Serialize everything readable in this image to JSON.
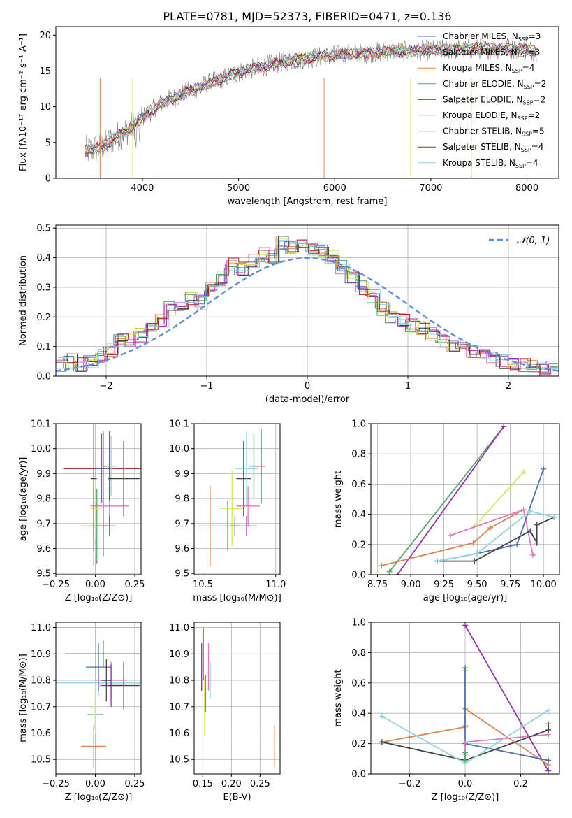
{
  "figure": {
    "title": "PLATE=0781, MJD=52373, FIBERID=0471, z=0.136"
  },
  "chart_data": [
    {
      "id": "spectrum",
      "type": "line",
      "xlabel": "wavelength [Angstrom, rest frame]",
      "ylabel": "Flux [fλ10⁻¹⁷ erg cm⁻² s⁻¹ A⁻¹]",
      "xlim": [
        3100,
        8330
      ],
      "ylim": [
        0,
        21.2
      ],
      "xticks": [
        4000,
        5000,
        6000,
        7000,
        8000
      ],
      "yticks": [
        0,
        5,
        10,
        15,
        20
      ],
      "legend_position": "top-right",
      "continuum": {
        "x": [
          3400,
          3550,
          3700,
          3850,
          4000,
          4200,
          4500,
          4800,
          5000,
          5300,
          5600,
          6000,
          6400,
          6800,
          7200,
          7600,
          8000,
          8100
        ],
        "y": [
          3.8,
          4.2,
          5.5,
          6.8,
          8.5,
          10.5,
          12.2,
          13.8,
          14.8,
          15.8,
          16.6,
          17.2,
          17.6,
          17.8,
          18.0,
          18.1,
          18.0,
          17.8
        ]
      },
      "series": [
        {
          "name": "Chabrier MILES, N_SSP=3",
          "label": "Chabrier MILES, N",
          "sub": "SSP",
          "tail": "=3",
          "color": "#4c72b0"
        },
        {
          "name": "Salpeter MILES, N_SSP=3",
          "label": "Salpeter MILES, N",
          "sub": "SSP",
          "tail": "=3",
          "color": "#e377c2"
        },
        {
          "name": "Kroupa MILES, N_SSP=4",
          "label": "Kroupa MILES, N",
          "sub": "SSP",
          "tail": "=4",
          "color": "#dd8452"
        },
        {
          "name": "Chabrier ELODIE, N_SSP=2",
          "label": "Chabrier ELODIE, N",
          "sub": "SSP",
          "tail": "=2",
          "color": "#55a868"
        },
        {
          "name": "Salpeter ELODIE, N_SSP=2",
          "label": "Salpeter ELODIE, N",
          "sub": "SSP",
          "tail": "=2",
          "color": "#9b30b0"
        },
        {
          "name": "Kroupa ELODIE, N_SSP=2",
          "label": "Kroupa ELODIE, N",
          "sub": "SSP",
          "tail": "=2",
          "color": "#d4e95e"
        },
        {
          "name": "Chabrier STELIB, N_SSP=5",
          "label": "Chabrier STELIB, N",
          "sub": "SSP",
          "tail": "=5",
          "color": "#444444"
        },
        {
          "name": "Salpeter STELIB, N_SSP=4",
          "label": "Salpeter STELIB, N",
          "sub": "SSP",
          "tail": "=4",
          "color": "#b22222"
        },
        {
          "name": "Kroupa STELIB, N_SSP=4",
          "label": "Kroupa STELIB, N",
          "sub": "SSP",
          "tail": "=4",
          "color": "#8fd3e0"
        }
      ]
    },
    {
      "id": "residual-hist",
      "type": "line",
      "xlabel": "(data-model)/error",
      "ylabel": "Normed distribution",
      "xlim": [
        -2.5,
        2.5
      ],
      "ylim": [
        0,
        0.51
      ],
      "xticks": [
        -2,
        -1,
        0,
        1,
        2
      ],
      "yticks": [
        0.0,
        0.1,
        0.2,
        0.3,
        0.4,
        0.5
      ],
      "legend_entry": "𝒩(0, 1)",
      "legend_position": "top-right",
      "bins_left": [
        -2.5,
        -2.4,
        -2.3,
        -2.2,
        -2.1,
        -2.0,
        -1.9,
        -1.8,
        -1.7,
        -1.6,
        -1.5,
        -1.4,
        -1.3,
        -1.2,
        -1.1,
        -1.0,
        -0.9,
        -0.8,
        -0.7,
        -0.6,
        -0.5,
        -0.4,
        -0.3,
        -0.2,
        -0.1,
        0.0,
        0.1,
        0.2,
        0.3,
        0.4,
        0.5,
        0.6,
        0.7,
        0.8,
        0.9,
        1.0,
        1.1,
        1.2,
        1.3,
        1.4,
        1.5,
        1.6,
        1.7,
        1.8,
        1.9,
        2.0,
        2.1,
        2.2,
        2.3,
        2.4
      ],
      "bin_width": 0.1,
      "base_heights": [
        0.04,
        0.05,
        0.04,
        0.05,
        0.07,
        0.09,
        0.13,
        0.12,
        0.14,
        0.17,
        0.19,
        0.23,
        0.24,
        0.26,
        0.25,
        0.3,
        0.33,
        0.38,
        0.36,
        0.39,
        0.41,
        0.4,
        0.45,
        0.44,
        0.45,
        0.43,
        0.42,
        0.4,
        0.37,
        0.33,
        0.3,
        0.27,
        0.23,
        0.2,
        0.19,
        0.17,
        0.16,
        0.14,
        0.12,
        0.1,
        0.09,
        0.08,
        0.07,
        0.06,
        0.05,
        0.04,
        0.04,
        0.03,
        0.02,
        0.03
      ],
      "normal_mean": 0,
      "normal_sigma": 1
    },
    {
      "id": "age-vs-Z",
      "type": "scatter",
      "xlabel": "Z [log₁₀(Z/Z⊙)]",
      "ylabel": "age  [log₁₀(age/yr)]",
      "xlim": [
        -0.25,
        0.29
      ],
      "ylim": [
        9.495,
        10.1
      ],
      "xticks": [
        -0.25,
        0.0,
        0.25
      ],
      "yticks": [
        9.5,
        9.6,
        9.7,
        9.8,
        9.9,
        10.0,
        10.1
      ],
      "points": [
        {
          "x": -0.01,
          "y": 9.69,
          "xerr": 0.08,
          "yerr": 0.16,
          "color": "#dd8452"
        },
        {
          "x": 0.01,
          "y": 9.69,
          "xerr": 0.05,
          "yerr": 0.15,
          "color": "#55a868"
        },
        {
          "x": 0.0,
          "y": 9.76,
          "xerr": 0.03,
          "yerr": 0.12,
          "color": "#d4e95e"
        },
        {
          "x": -0.01,
          "y": 9.88,
          "xerr": 0.02,
          "yerr": 0.29,
          "color": "#444444"
        },
        {
          "x": 0.05,
          "y": 9.69,
          "xerr": 0.04,
          "yerr": 0.12,
          "color": "#444444"
        },
        {
          "x": 0.05,
          "y": 9.92,
          "xerr": 0.26,
          "yerr": 0.15,
          "color": "#8fd3e0"
        },
        {
          "x": 0.05,
          "y": 9.92,
          "xerr": 0.25,
          "yerr": 0.15,
          "color": "#b22222"
        },
        {
          "x": 0.09,
          "y": 9.77,
          "xerr": 0.12,
          "yerr": 0.08,
          "color": "#e377c2"
        },
        {
          "x": 0.09,
          "y": 9.93,
          "xerr": 0.04,
          "yerr": 0.14,
          "color": "#b22222"
        },
        {
          "x": 0.1,
          "y": 9.93,
          "xerr": 0.03,
          "yerr": 0.12,
          "color": "#8fd3e0"
        },
        {
          "x": 0.04,
          "y": 9.92,
          "xerr": 0.04,
          "yerr": 0.14,
          "color": "#4c72b0"
        },
        {
          "x": 0.18,
          "y": 9.88,
          "xerr": 0.1,
          "yerr": 0.15,
          "color": "#444444"
        },
        {
          "x": 0.09,
          "y": 9.69,
          "xerr": 0.04,
          "yerr": 0.04,
          "color": "#9b30b0"
        }
      ]
    },
    {
      "id": "age-vs-mass",
      "type": "scatter",
      "xlabel": "mass [log₁₀(M/M⊙)]",
      "ylabel": "",
      "xlim": [
        10.44,
        11.03
      ],
      "ylim": [
        9.495,
        10.1
      ],
      "xticks": [
        10.5,
        11.0
      ],
      "yticks": [
        9.5,
        9.6,
        9.7,
        9.8,
        9.9,
        10.0,
        10.1
      ],
      "points": [
        {
          "x": 10.55,
          "y": 9.69,
          "xerr": 0.08,
          "yerr": 0.16,
          "color": "#dd8452"
        },
        {
          "x": 10.67,
          "y": 9.69,
          "xerr": 0.04,
          "yerr": 0.1,
          "color": "#55a868"
        },
        {
          "x": 10.7,
          "y": 9.76,
          "xerr": 0.08,
          "yerr": 0.15,
          "color": "#d4e95e"
        },
        {
          "x": 10.78,
          "y": 9.88,
          "xerr": 0.05,
          "yerr": 0.15,
          "color": "#444444"
        },
        {
          "x": 10.8,
          "y": 9.92,
          "xerr": 0.08,
          "yerr": 0.15,
          "color": "#8fd3e0"
        },
        {
          "x": 10.81,
          "y": 9.77,
          "xerr": 0.08,
          "yerr": 0.08,
          "color": "#e377c2"
        },
        {
          "x": 10.85,
          "y": 9.93,
          "xerr": 0.03,
          "yerr": 0.13,
          "color": "#4c72b0"
        },
        {
          "x": 10.9,
          "y": 9.93,
          "xerr": 0.03,
          "yerr": 0.15,
          "color": "#b22222"
        },
        {
          "x": 10.8,
          "y": 9.69,
          "xerr": 0.07,
          "yerr": 0.04,
          "color": "#9b30b0"
        },
        {
          "x": 10.72,
          "y": 9.69,
          "xerr": 0.03,
          "yerr": 0.04,
          "color": "#444444"
        }
      ]
    },
    {
      "id": "massweight-vs-age",
      "type": "line",
      "xlabel": "age  [log₁₀(age/yr)]",
      "ylabel": "mass weight",
      "xlim": [
        8.7,
        10.12
      ],
      "ylim": [
        0,
        1.0
      ],
      "xticks": [
        8.75,
        9.0,
        9.25,
        9.5,
        9.75,
        10.0
      ],
      "yticks": [
        0.0,
        0.2,
        0.4,
        0.6,
        0.8,
        1.0
      ],
      "series": [
        {
          "color": "#55a868",
          "x": [
            8.84,
            9.7
          ],
          "y": [
            0.02,
            0.98
          ]
        },
        {
          "color": "#9b30b0",
          "x": [
            8.9,
            9.7
          ],
          "y": [
            0.0,
            0.98
          ]
        },
        {
          "color": "#dd8452",
          "x": [
            8.78,
            9.47,
            9.6,
            9.85
          ],
          "y": [
            0.06,
            0.21,
            0.31,
            0.43
          ]
        },
        {
          "color": "#d4e95e",
          "x": [
            9.48,
            9.85
          ],
          "y": [
            0.32,
            0.68
          ]
        },
        {
          "color": "#e377c2",
          "x": [
            9.3,
            9.85,
            9.92
          ],
          "y": [
            0.26,
            0.43,
            0.13
          ]
        },
        {
          "color": "#4c72b0",
          "x": [
            9.2,
            9.5,
            9.8,
            10.0
          ],
          "y": [
            0.09,
            0.14,
            0.2,
            0.7
          ]
        },
        {
          "color": "#444444",
          "x": [
            9.2,
            9.48,
            9.9,
            9.95,
            9.95,
            10.08
          ],
          "y": [
            0.09,
            0.09,
            0.29,
            0.21,
            0.33,
            0.38
          ]
        },
        {
          "color": "#8fd3e0",
          "x": [
            9.2,
            9.5,
            9.9,
            10.08
          ],
          "y": [
            0.09,
            0.14,
            0.42,
            0.38
          ]
        }
      ]
    },
    {
      "id": "mass-vs-Z",
      "type": "scatter",
      "xlabel": "Z [log₁₀(Z/Z⊙)]",
      "ylabel": "mass [log₁₀(M/M⊙)]",
      "xlim": [
        -0.25,
        0.29
      ],
      "ylim": [
        10.445,
        11.02
      ],
      "xticks": [
        -0.25,
        0.0,
        0.25
      ],
      "yticks": [
        10.5,
        10.6,
        10.7,
        10.8,
        10.9,
        11.0
      ],
      "points": [
        {
          "x": -0.01,
          "y": 10.55,
          "xerr": 0.08,
          "yerr": 0.08,
          "color": "#dd8452"
        },
        {
          "x": 0.0,
          "y": 10.67,
          "xerr": 0.05,
          "yerr": 0.06,
          "color": "#55a868"
        },
        {
          "x": 0.0,
          "y": 10.7,
          "xerr": 0.02,
          "yerr": 0.1,
          "color": "#d4e95e"
        },
        {
          "x": 0.02,
          "y": 10.79,
          "xerr": 0.27,
          "yerr": 0.05,
          "color": "#8fd3e0"
        },
        {
          "x": 0.02,
          "y": 10.85,
          "xerr": 0.08,
          "yerr": 0.09,
          "color": "#4c72b0"
        },
        {
          "x": 0.05,
          "y": 10.9,
          "xerr": 0.24,
          "yerr": 0.05,
          "color": "#b22222"
        },
        {
          "x": 0.1,
          "y": 10.8,
          "xerr": 0.1,
          "yerr": 0.07,
          "color": "#e377c2"
        },
        {
          "x": 0.1,
          "y": 10.78,
          "xerr": 0.07,
          "yerr": 0.08,
          "color": "#9b30b0"
        },
        {
          "x": 0.18,
          "y": 10.78,
          "xerr": 0.1,
          "yerr": 0.09,
          "color": "#444444"
        },
        {
          "x": 0.07,
          "y": 10.8,
          "xerr": 0.03,
          "yerr": 0.08,
          "color": "#444444"
        }
      ]
    },
    {
      "id": "mass-vs-ebv",
      "type": "scatter",
      "xlabel": "E(B-V)",
      "ylabel": "",
      "xlim": [
        0.135,
        0.285
      ],
      "ylim": [
        10.445,
        11.02
      ],
      "xticks": [
        0.15,
        0.2,
        0.25
      ],
      "yticks": [
        10.5,
        10.6,
        10.7,
        10.8,
        10.9,
        11.0
      ],
      "points": [
        {
          "x": 0.148,
          "y": 10.85,
          "xerr": 0.0,
          "yerr": 0.09,
          "color": "#9b30b0"
        },
        {
          "x": 0.151,
          "y": 10.9,
          "xerr": 0.0,
          "yerr": 0.1,
          "color": "#4c72b0"
        },
        {
          "x": 0.153,
          "y": 10.7,
          "xerr": 0.0,
          "yerr": 0.11,
          "color": "#d4e95e"
        },
        {
          "x": 0.155,
          "y": 10.75,
          "xerr": 0.0,
          "yerr": 0.07,
          "color": "#55a868"
        },
        {
          "x": 0.16,
          "y": 10.85,
          "xerr": 0.0,
          "yerr": 0.09,
          "color": "#e377c2"
        },
        {
          "x": 0.163,
          "y": 10.8,
          "xerr": 0.0,
          "yerr": 0.07,
          "color": "#8fd3e0"
        },
        {
          "x": 0.275,
          "y": 10.55,
          "xerr": 0.0,
          "yerr": 0.08,
          "color": "#dd8452"
        }
      ]
    },
    {
      "id": "massweight-vs-Z",
      "type": "line",
      "xlabel": "Z [log₁₀(Z/Z⊙)]",
      "ylabel": "mass weight",
      "xlim": [
        -0.34,
        0.34
      ],
      "ylim": [
        0,
        1.0
      ],
      "xticks": [
        -0.2,
        0.0,
        0.2
      ],
      "yticks": [
        0.0,
        0.2,
        0.4,
        0.6,
        0.8,
        1.0
      ],
      "series": [
        {
          "color": "#9b30b0",
          "x": [
            0.0,
            0.3
          ],
          "y": [
            0.98,
            0.02
          ]
        },
        {
          "color": "#dd8452",
          "x": [
            -0.3,
            0.0,
            0.0,
            0.3
          ],
          "y": [
            0.21,
            0.31,
            0.43,
            0.06
          ]
        },
        {
          "color": "#d4e95e",
          "x": [
            0.0,
            0.0
          ],
          "y": [
            0.32,
            0.68
          ]
        },
        {
          "color": "#4c72b0",
          "x": [
            0.0,
            0.0,
            0.3
          ],
          "y": [
            0.7,
            0.2,
            0.09
          ]
        },
        {
          "color": "#e377c2",
          "x": [
            0.0,
            0.0,
            0.3
          ],
          "y": [
            0.13,
            0.21,
            0.26
          ]
        },
        {
          "color": "#444444",
          "x": [
            -0.3,
            0.0,
            0.3,
            0.3
          ],
          "y": [
            0.21,
            0.09,
            0.29,
            0.33
          ]
        },
        {
          "color": "#8fd3e0",
          "x": [
            -0.3,
            0.0,
            0.3
          ],
          "y": [
            0.38,
            0.07,
            0.42
          ]
        },
        {
          "color": "#55a868",
          "x": [
            0.0,
            0.0
          ],
          "y": [
            0.09,
            0.14
          ]
        }
      ]
    }
  ]
}
